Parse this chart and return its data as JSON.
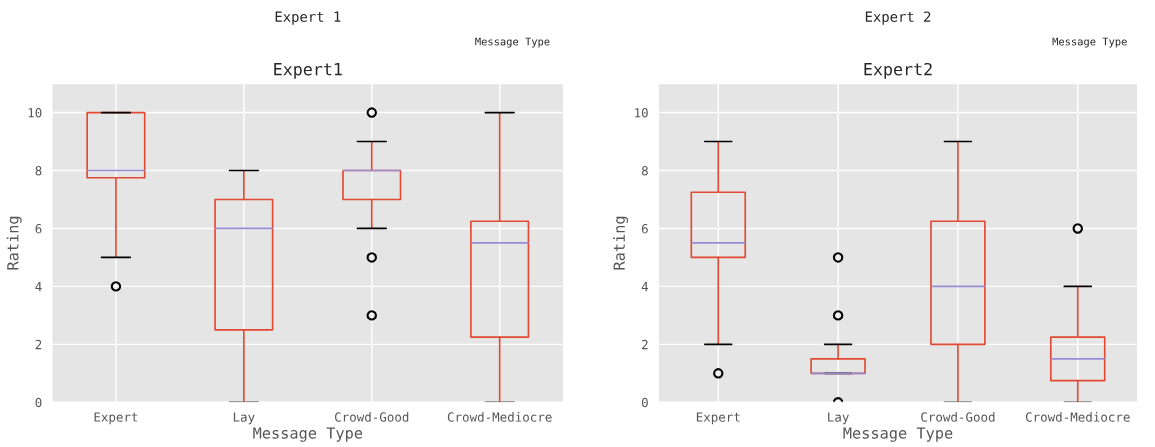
{
  "chart_data": [
    {
      "type": "box",
      "title": "Expert1",
      "xlabel": "Message Type",
      "ylabel": "Rating",
      "categories": [
        "Expert",
        "Lay",
        "Crowd-Good",
        "Crowd-Mediocre"
      ],
      "ylim": [
        0,
        11
      ],
      "yticks": [
        0,
        2,
        4,
        6,
        8,
        10
      ],
      "grid": true,
      "annotations": [
        "Expert 1",
        "Message Type"
      ],
      "series": [
        {
          "color": "#e24a33",
          "boxes": [
            {
              "low": 5,
              "q1": 7.75,
              "median": 8,
              "q3": 10,
              "high": 10,
              "outliers": [
                4
              ]
            },
            {
              "low": 0,
              "q1": 2.5,
              "median": 6,
              "q3": 7,
              "high": 8
            },
            {
              "low": 6,
              "q1": 7,
              "median": 8,
              "q3": 8,
              "high": 9,
              "outliers": [
                10,
                5,
                3
              ]
            },
            {
              "low": 0,
              "q1": 2.25,
              "median": 5.5,
              "q3": 6.25,
              "high": 10
            }
          ]
        }
      ]
    },
    {
      "type": "box",
      "title": "Expert2",
      "xlabel": "Message Type",
      "ylabel": "Rating",
      "categories": [
        "Expert",
        "Lay",
        "Crowd-Good",
        "Crowd-Mediocre"
      ],
      "ylim": [
        0,
        11
      ],
      "yticks": [
        0,
        2,
        4,
        6,
        8,
        10
      ],
      "grid": true,
      "annotations": [
        "Expert 2",
        "Message Type"
      ],
      "series": [
        {
          "color": "#e24a33",
          "boxes": [
            {
              "low": 2,
              "q1": 5,
              "median": 5.5,
              "q3": 7.25,
              "high": 9,
              "outliers": [
                1
              ]
            },
            {
              "low": 1,
              "q1": 1,
              "median": 1,
              "q3": 1.5,
              "high": 2,
              "outliers": [
                5,
                3,
                0
              ]
            },
            {
              "low": 0,
              "q1": 2,
              "median": 4,
              "q3": 6.25,
              "high": 9
            },
            {
              "low": 0,
              "q1": 0.75,
              "median": 1.5,
              "q3": 2.25,
              "high": 4,
              "outliers": [
                6
              ]
            }
          ]
        }
      ]
    }
  ]
}
